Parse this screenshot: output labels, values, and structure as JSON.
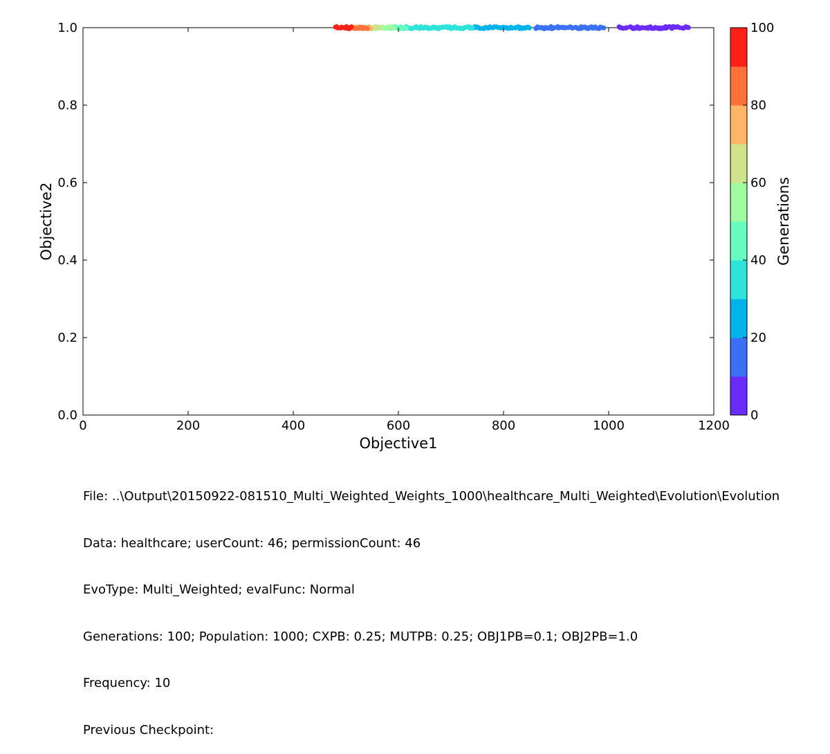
{
  "chart_data": {
    "type": "scatter",
    "xlabel": "Objective1",
    "ylabel": "Objective2",
    "xlim": [
      0,
      1200
    ],
    "ylim": [
      0.0,
      1.0
    ],
    "xticks": [
      "0",
      "200",
      "400",
      "600",
      "800",
      "1000",
      "1200"
    ],
    "yticks": [
      "0.0",
      "0.2",
      "0.4",
      "0.6",
      "0.8",
      "1.0"
    ],
    "colorbar": {
      "label": "Generations",
      "range": [
        0,
        100
      ],
      "ticks": [
        "0",
        "20",
        "40",
        "60",
        "80",
        "100"
      ],
      "colors": [
        "#6a2cfb",
        "#3b70f6",
        "#00b4eb",
        "#2ee3d9",
        "#67fbc0",
        "#a0fca0",
        "#d0e28a",
        "#ffb566",
        "#ff7139",
        "#ff2116"
      ]
    },
    "series": [
      {
        "name": "gen 0-10",
        "color": "#6a2cfb",
        "x_range": [
          1020,
          1153
        ],
        "y": 1.0
      },
      {
        "name": "gen 10-20",
        "color": "#3b70f6",
        "x_range": [
          862,
          990
        ],
        "y": 1.0
      },
      {
        "name": "gen 20-30",
        "color": "#00b4eb",
        "x_range": [
          735,
          852
        ],
        "y": 1.0
      },
      {
        "name": "gen 30-40",
        "color": "#2ee3d9",
        "x_range": [
          610,
          742
        ],
        "y": 1.0
      },
      {
        "name": "gen 40-50",
        "color": "#67fbc0",
        "x_range": [
          575,
          615
        ],
        "y": 1.0
      },
      {
        "name": "gen 50-60",
        "color": "#a0fca0",
        "x_range": [
          555,
          590
        ],
        "y": 1.0
      },
      {
        "name": "gen 60-70",
        "color": "#d0e28a",
        "x_range": [
          535,
          565
        ],
        "y": 1.0
      },
      {
        "name": "gen 70-80",
        "color": "#ffb566",
        "x_range": [
          520,
          550
        ],
        "y": 1.0
      },
      {
        "name": "gen 80-90",
        "color": "#ff7139",
        "x_range": [
          500,
          540
        ],
        "y": 1.0
      },
      {
        "name": "gen 90-100",
        "color": "#ff2116",
        "x_range": [
          480,
          510
        ],
        "y": 1.0
      }
    ]
  },
  "info": {
    "file": "File: ..\\Output\\20150922-081510_Multi_Weighted_Weights_1000\\healthcare_Multi_Weighted\\Evolution\\Evolution",
    "data": "Data: healthcare; userCount: 46; permissionCount: 46",
    "evotype": "EvoType: Multi_Weighted; evalFunc: Normal",
    "generations": "Generations: 100; Population: 1000; CXPB: 0.25; MUTPB: 0.25; OBJ1PB=0.1; OBJ2PB=1.0",
    "frequency": "Frequency: 10",
    "checkpoint": "Previous Checkpoint:"
  }
}
